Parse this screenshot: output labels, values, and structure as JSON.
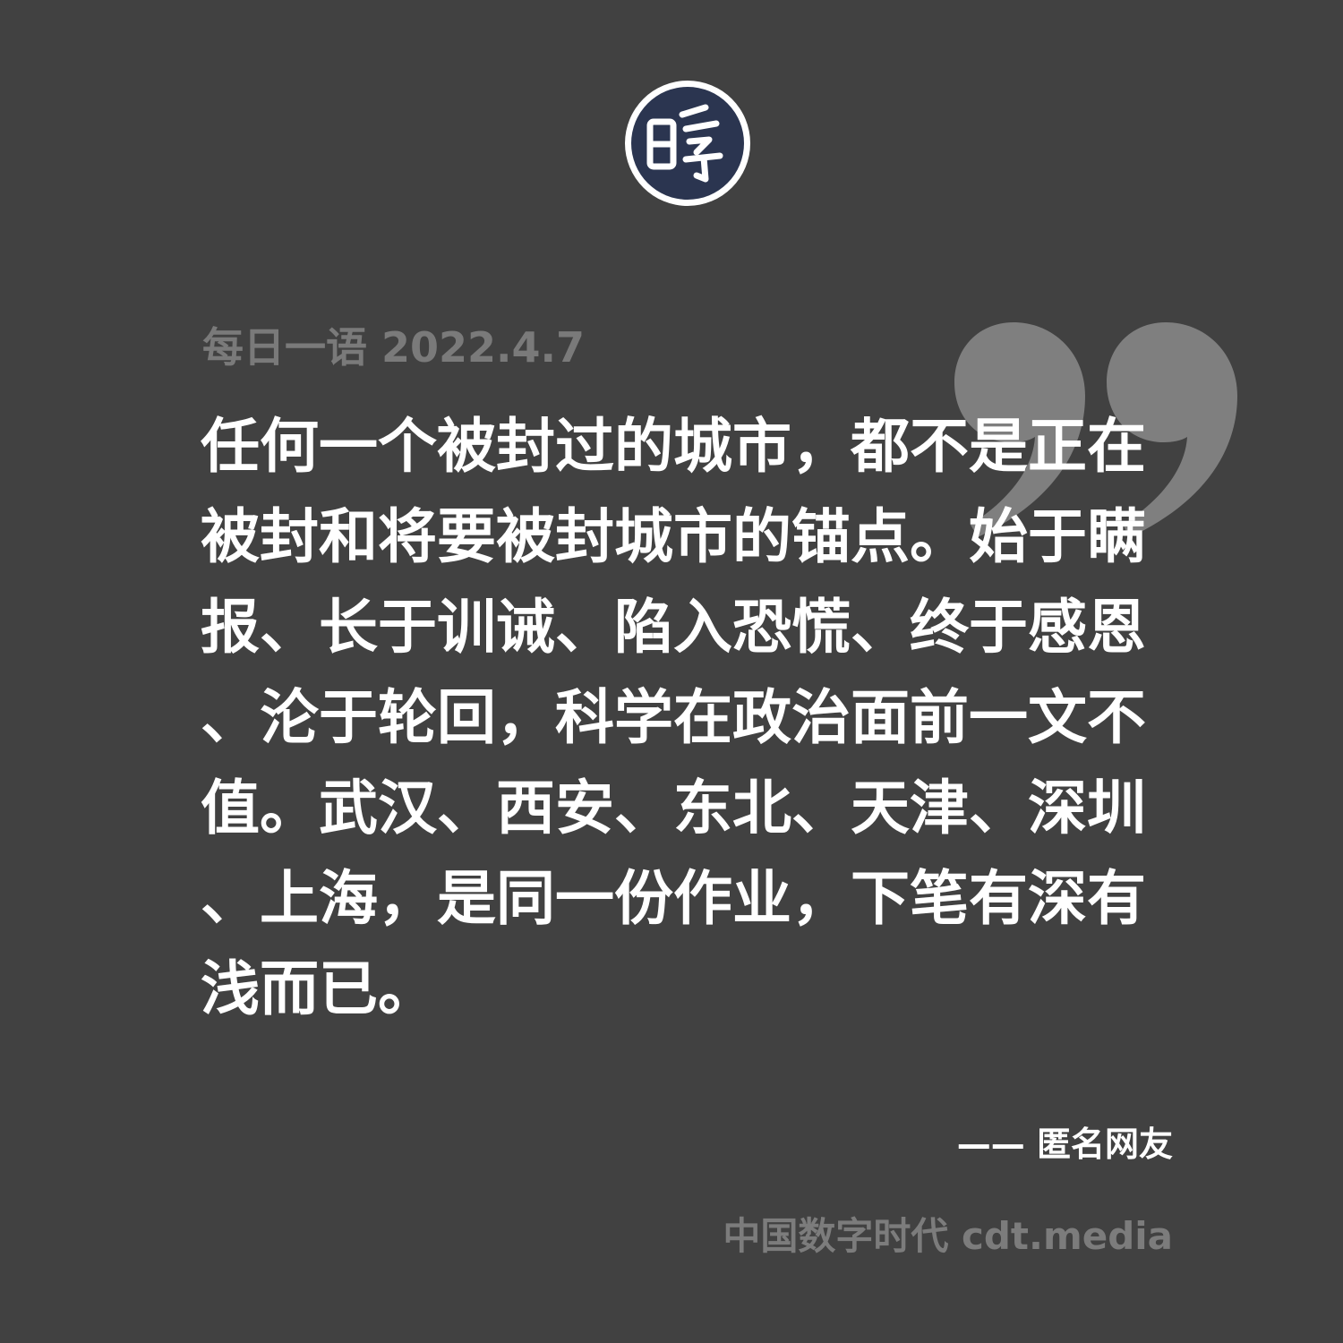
{
  "header": {
    "date_line": "每日一语 2022.4.7"
  },
  "quote": {
    "lines": [
      "任何一个被封过的城市，都不是正在",
      "被封和将要被封城市的锚点。始于瞒",
      "报、长于训诫、陷入恐慌、终于感恩",
      "、沦于轮回，科学在政治面前一文不",
      "值。武汉、西安、东北、天津、深圳",
      "、上海，是同一份作业，下笔有深有",
      "浅而已。"
    ]
  },
  "attribution": {
    "text": "—— 匿名网友"
  },
  "footer": {
    "brand": "中国数字时代 cdt.media"
  },
  "icons": {
    "logo": "cdt-seal-logo",
    "quote_mark": "closing-quote-icon"
  },
  "colors": {
    "background": "#414141",
    "text": "#ffffff",
    "muted": "#7a7a7a",
    "logo_fill": "#2b3550"
  }
}
